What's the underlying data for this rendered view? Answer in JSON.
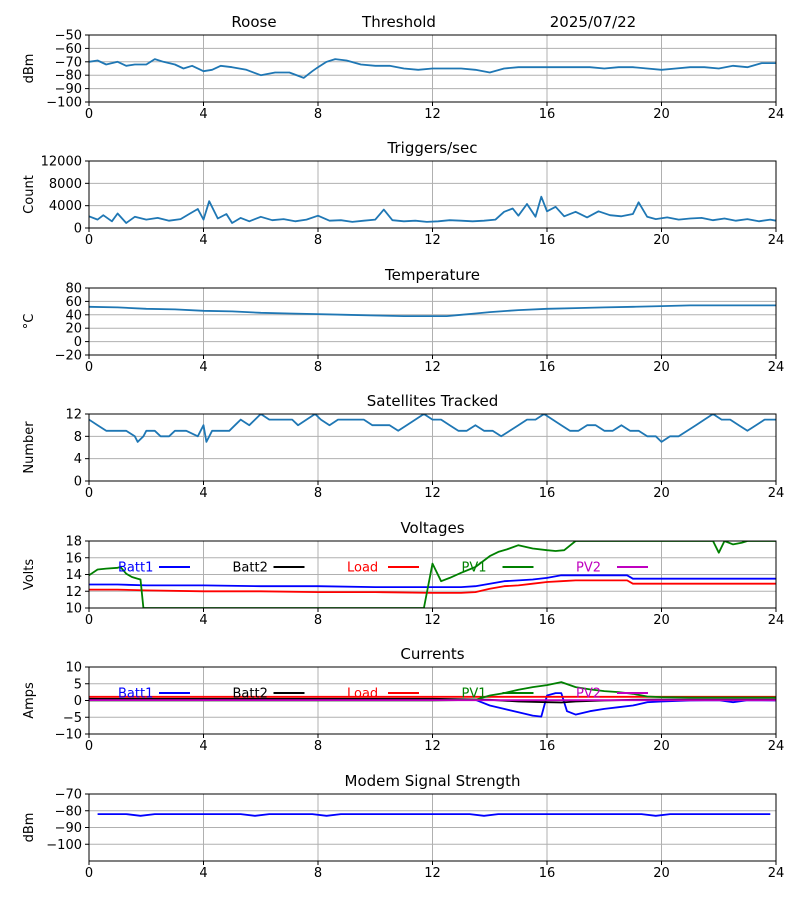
{
  "header": {
    "station": "Roose",
    "mode": "Threshold",
    "date": "2025/07/22"
  },
  "chart_data": [
    {
      "type": "line",
      "title": "",
      "ylabel": "dBm",
      "xlim": [
        0,
        24
      ],
      "ylim": [
        -100,
        -50
      ],
      "xticks": [
        "0",
        "4",
        "8",
        "12",
        "16",
        "20",
        "24"
      ],
      "yticks": [
        "-100",
        "-90",
        "-80",
        "-70",
        "-60",
        "-50"
      ],
      "grid": true,
      "series": [
        {
          "color": "#1f77b4",
          "x": [
            0,
            0.3,
            0.6,
            1,
            1.3,
            1.6,
            2,
            2.3,
            2.6,
            3,
            3.3,
            3.6,
            4,
            4.3,
            4.6,
            5,
            5.5,
            6,
            6.5,
            7,
            7.5,
            7.8,
            8,
            8.3,
            8.6,
            9,
            9.5,
            10,
            10.5,
            11,
            11.5,
            12,
            12.5,
            13,
            13.5,
            14,
            14.5,
            15,
            15.5,
            16,
            16.5,
            17,
            17.5,
            18,
            18.5,
            19,
            19.5,
            20,
            20.5,
            21,
            21.5,
            22,
            22.5,
            23,
            23.5,
            24
          ],
          "y": [
            -70,
            -69,
            -72,
            -70,
            -73,
            -72,
            -72,
            -68,
            -70,
            -72,
            -75,
            -73,
            -77,
            -76,
            -73,
            -74,
            -76,
            -80,
            -78,
            -78,
            -82,
            -77,
            -74,
            -70,
            -68,
            -69,
            -72,
            -73,
            -73,
            -75,
            -76,
            -75,
            -75,
            -75,
            -76,
            -78,
            -75,
            -74,
            -74,
            -74,
            -74,
            -74,
            -74,
            -75,
            -74,
            -74,
            -75,
            -76,
            -75,
            -74,
            -74,
            -75,
            -73,
            -74,
            -71,
            -71
          ]
        }
      ]
    },
    {
      "type": "line",
      "title": "Triggers/sec",
      "ylabel": "Count",
      "xlim": [
        0,
        24
      ],
      "ylim": [
        0,
        12000
      ],
      "xticks": [
        "0",
        "4",
        "8",
        "12",
        "16",
        "20",
        "24"
      ],
      "yticks": [
        "0",
        "4000",
        "8000",
        "12000"
      ],
      "grid": true,
      "series": [
        {
          "color": "#1f77b4",
          "x": [
            0,
            0.3,
            0.5,
            0.8,
            1,
            1.3,
            1.6,
            2,
            2.4,
            2.8,
            3.2,
            3.5,
            3.8,
            4,
            4.2,
            4.5,
            4.8,
            5,
            5.3,
            5.6,
            6,
            6.4,
            6.8,
            7.2,
            7.6,
            8,
            8.4,
            8.8,
            9.2,
            9.6,
            10,
            10.3,
            10.6,
            11,
            11.4,
            11.8,
            12.2,
            12.6,
            13,
            13.4,
            13.8,
            14.2,
            14.5,
            14.8,
            15,
            15.3,
            15.6,
            15.8,
            16,
            16.3,
            16.6,
            17,
            17.4,
            17.8,
            18.2,
            18.6,
            19,
            19.2,
            19.5,
            19.8,
            20.2,
            20.6,
            21,
            21.4,
            21.8,
            22.2,
            22.6,
            23,
            23.4,
            23.8,
            24
          ],
          "y": [
            2100,
            1500,
            2300,
            1200,
            2600,
            900,
            2000,
            1500,
            1800,
            1300,
            1600,
            2500,
            3400,
            1500,
            4800,
            1700,
            2500,
            900,
            1800,
            1200,
            2000,
            1400,
            1600,
            1200,
            1500,
            2200,
            1300,
            1400,
            1100,
            1300,
            1500,
            3300,
            1400,
            1200,
            1300,
            1100,
            1200,
            1400,
            1300,
            1200,
            1300,
            1500,
            2900,
            3500,
            2200,
            4300,
            2000,
            5600,
            3000,
            3800,
            2100,
            2900,
            1900,
            3000,
            2300,
            2100,
            2500,
            4600,
            2000,
            1600,
            1900,
            1500,
            1700,
            1800,
            1400,
            1700,
            1300,
            1600,
            1200,
            1500,
            1300
          ]
        }
      ]
    },
    {
      "type": "line",
      "title": "Temperature",
      "ylabel": "°C",
      "xlim": [
        0,
        24
      ],
      "ylim": [
        -20,
        80
      ],
      "xticks": [
        "0",
        "4",
        "8",
        "12",
        "16",
        "20",
        "24"
      ],
      "yticks": [
        "-20",
        "0",
        "20",
        "40",
        "60",
        "80"
      ],
      "grid": true,
      "series": [
        {
          "color": "#1f77b4",
          "x": [
            0,
            1,
            2,
            3,
            4,
            5,
            6,
            7,
            8,
            9,
            10,
            11,
            12,
            12.5,
            13,
            13.5,
            14,
            15,
            16,
            17,
            18,
            19,
            20,
            21,
            22,
            23,
            24
          ],
          "y": [
            52,
            51,
            49,
            48,
            46,
            45,
            43,
            42,
            41,
            40,
            39,
            38,
            38,
            38,
            40,
            42,
            44,
            47,
            49,
            50,
            51,
            52,
            53,
            54,
            54,
            54,
            54
          ]
        }
      ]
    },
    {
      "type": "line",
      "title": "Satellites Tracked",
      "ylabel": "Number",
      "xlim": [
        0,
        24
      ],
      "ylim": [
        0,
        12
      ],
      "xticks": [
        "0",
        "4",
        "8",
        "12",
        "16",
        "20",
        "24"
      ],
      "yticks": [
        "0",
        "4",
        "8",
        "12"
      ],
      "grid": true,
      "series": [
        {
          "color": "#1f77b4",
          "x": [
            0,
            0.3,
            0.6,
            1,
            1.3,
            1.6,
            1.7,
            1.9,
            2,
            2.3,
            2.5,
            2.8,
            3,
            3.4,
            3.8,
            4,
            4.1,
            4.3,
            4.6,
            4.9,
            5.1,
            5.3,
            5.6,
            5.8,
            6,
            6.3,
            6.6,
            6.9,
            7.1,
            7.3,
            7.6,
            7.9,
            8.1,
            8.4,
            8.7,
            9,
            9.3,
            9.6,
            9.9,
            10.2,
            10.5,
            10.8,
            11.1,
            11.4,
            11.7,
            12,
            12.3,
            12.6,
            12.9,
            13.2,
            13.5,
            13.8,
            14.1,
            14.4,
            14.7,
            15,
            15.3,
            15.6,
            15.9,
            16.2,
            16.5,
            16.8,
            17.1,
            17.4,
            17.7,
            18,
            18.3,
            18.6,
            18.9,
            19.2,
            19.5,
            19.8,
            20,
            20.3,
            20.6,
            20.9,
            21.2,
            21.5,
            21.8,
            22.1,
            22.4,
            22.7,
            23,
            23.3,
            23.6,
            24
          ],
          "y": [
            11,
            10,
            9,
            9,
            9,
            8,
            7,
            8,
            9,
            9,
            8,
            8,
            9,
            9,
            8,
            10,
            7,
            9,
            9,
            9,
            10,
            11,
            10,
            11,
            12,
            11,
            11,
            11,
            11,
            10,
            11,
            12,
            11,
            10,
            11,
            11,
            11,
            11,
            10,
            10,
            10,
            9,
            10,
            11,
            12,
            11,
            11,
            10,
            9,
            9,
            10,
            9,
            9,
            8,
            9,
            10,
            11,
            11,
            12,
            11,
            10,
            9,
            9,
            10,
            10,
            9,
            9,
            10,
            9,
            9,
            8,
            8,
            7,
            8,
            8,
            9,
            10,
            11,
            12,
            11,
            11,
            10,
            9,
            10,
            11,
            11
          ]
        }
      ]
    },
    {
      "type": "line",
      "title": "Voltages",
      "ylabel": "Volts",
      "xlim": [
        0,
        24
      ],
      "ylim": [
        10,
        18
      ],
      "xticks": [
        "0",
        "4",
        "8",
        "12",
        "16",
        "20",
        "24"
      ],
      "yticks": [
        "10",
        "12",
        "14",
        "16",
        "18"
      ],
      "grid": true,
      "series": [
        {
          "name": "Batt1",
          "color": "#0000ff",
          "x": [
            0,
            1,
            2,
            4,
            6,
            8,
            10,
            12,
            13,
            13.5,
            14,
            14.5,
            15,
            15.5,
            16,
            16.5,
            17,
            18,
            18.8,
            19,
            20,
            21,
            22,
            23,
            24
          ],
          "y": [
            12.8,
            12.8,
            12.7,
            12.7,
            12.6,
            12.6,
            12.5,
            12.5,
            12.5,
            12.6,
            12.9,
            13.2,
            13.3,
            13.4,
            13.6,
            13.9,
            13.9,
            13.9,
            13.9,
            13.5,
            13.5,
            13.5,
            13.5,
            13.5,
            13.5
          ]
        },
        {
          "name": "Batt2",
          "color": "#000000",
          "x": [],
          "y": []
        },
        {
          "name": "Load",
          "color": "#ff0000",
          "x": [
            0,
            1,
            2,
            4,
            6,
            8,
            10,
            12,
            13,
            13.5,
            14,
            14.5,
            15,
            15.5,
            16,
            16.5,
            17,
            18,
            18.8,
            19,
            20,
            21,
            22,
            23,
            24
          ],
          "y": [
            12.2,
            12.2,
            12.1,
            12.0,
            12.0,
            11.9,
            11.9,
            11.8,
            11.8,
            11.9,
            12.3,
            12.6,
            12.7,
            12.9,
            13.1,
            13.2,
            13.3,
            13.3,
            13.3,
            12.9,
            12.9,
            12.9,
            12.9,
            12.9,
            12.9
          ]
        },
        {
          "name": "PV1",
          "color": "#008000",
          "x": [
            0,
            0.3,
            0.6,
            1,
            1.1,
            1.3,
            1.5,
            1.7,
            1.8,
            1.9,
            11.7,
            12,
            12.3,
            12.6,
            13,
            13.5,
            14,
            14.3,
            14.6,
            15,
            15.5,
            16,
            16.3,
            16.6,
            17,
            21.8,
            22,
            22.2,
            22.5,
            22.8,
            23,
            24
          ],
          "y": [
            13.9,
            14.6,
            14.7,
            14.8,
            14.9,
            14.1,
            13.7,
            13.5,
            13.4,
            10,
            10,
            15.3,
            13.2,
            13.6,
            14.2,
            14.9,
            16.2,
            16.7,
            17,
            17.5,
            17.1,
            16.9,
            16.8,
            16.9,
            18,
            18,
            16.6,
            18,
            17.6,
            17.8,
            18,
            18
          ]
        },
        {
          "name": "PV2",
          "color": "#bf00bf",
          "x": [],
          "y": []
        }
      ]
    },
    {
      "type": "line",
      "title": "Currents",
      "ylabel": "Amps",
      "xlim": [
        0,
        24
      ],
      "ylim": [
        -10,
        10
      ],
      "xticks": [
        "0",
        "4",
        "8",
        "12",
        "16",
        "20",
        "24"
      ],
      "yticks": [
        "-10",
        "-5",
        "0",
        "5",
        "10"
      ],
      "grid": true,
      "series": [
        {
          "name": "Batt1",
          "color": "#0000ff",
          "x": [
            0,
            2,
            4,
            6,
            8,
            10,
            12,
            13.5,
            14,
            14.5,
            15,
            15.5,
            15.8,
            16,
            16.3,
            16.5,
            16.7,
            17,
            17.5,
            18,
            18.5,
            19,
            19.5,
            20,
            21,
            22,
            22.5,
            23,
            24
          ],
          "y": [
            0.5,
            0.3,
            0.3,
            0.3,
            0.3,
            0.3,
            0.3,
            0.2,
            -1.5,
            -2.5,
            -3.5,
            -4.5,
            -4.8,
            1.5,
            2.2,
            2.2,
            -3.2,
            -4.2,
            -3.2,
            -2.5,
            -2,
            -1.5,
            -0.5,
            -0.3,
            0,
            0.1,
            -0.5,
            0.1,
            0
          ]
        },
        {
          "name": "Batt2",
          "color": "#000000",
          "x": [
            0,
            4,
            8,
            12,
            13.5,
            14,
            15,
            16,
            16.5,
            17,
            18,
            19,
            20,
            24
          ],
          "y": [
            0.5,
            0.5,
            0.5,
            0.5,
            0.3,
            0.2,
            -0.3,
            -0.5,
            -0.6,
            -0.3,
            0,
            0.2,
            0.3,
            0.3
          ]
        },
        {
          "name": "Load",
          "color": "#ff0000",
          "x": [
            0,
            4,
            8,
            12,
            16,
            20,
            24
          ],
          "y": [
            1.1,
            1.1,
            1.1,
            1.1,
            1.1,
            1.1,
            1.1
          ]
        },
        {
          "name": "PV1",
          "color": "#008000",
          "x": [
            0,
            4,
            8,
            12,
            13.5,
            14,
            14.5,
            15,
            15.5,
            16,
            16.5,
            17,
            17.5,
            18,
            18.5,
            19,
            19.5,
            20,
            21,
            22,
            23,
            24
          ],
          "y": [
            0,
            0,
            0,
            0,
            0.2,
            1.5,
            2.2,
            3.2,
            4,
            4.6,
            5.5,
            4,
            3.3,
            2.8,
            2.5,
            2,
            1.2,
            1,
            0.9,
            0.9,
            0.9,
            0.9
          ]
        },
        {
          "name": "PV2",
          "color": "#bf00bf",
          "x": [
            0,
            4,
            8,
            12,
            16,
            20,
            24
          ],
          "y": [
            0.1,
            0.1,
            0.1,
            0.1,
            0.1,
            0.1,
            0.1
          ]
        }
      ]
    },
    {
      "type": "line",
      "title": "Modem Signal Strength",
      "ylabel": "dBm",
      "xlim": [
        0,
        24
      ],
      "ylim": [
        -110,
        -70
      ],
      "xticks": [
        "0",
        "4",
        "8",
        "12",
        "16",
        "20",
        "24"
      ],
      "yticks": [
        "-100",
        "-90",
        "-80",
        "-70"
      ],
      "grid": true,
      "series": [
        {
          "color": "#0000ff",
          "x": [
            0.3,
            1.3,
            1.8,
            2.3,
            3.3,
            4.3,
            5.3,
            5.8,
            6.3,
            7.3,
            7.8,
            8.3,
            8.8,
            9.3,
            10.3,
            11.3,
            12.3,
            13.3,
            13.8,
            14.3,
            15.3,
            16.3,
            17.3,
            18.3,
            19.3,
            19.8,
            20.3,
            21.3,
            22.3,
            23.3,
            23.8
          ],
          "y": [
            -82,
            -82,
            -83,
            -82,
            -82,
            -82,
            -82,
            -83,
            -82,
            -82,
            -82,
            -83,
            -82,
            -82,
            -82,
            -82,
            -82,
            -82,
            -83,
            -82,
            -82,
            -82,
            -82,
            -82,
            -82,
            -83,
            -82,
            -82,
            -82,
            -82,
            -82
          ]
        }
      ]
    }
  ]
}
